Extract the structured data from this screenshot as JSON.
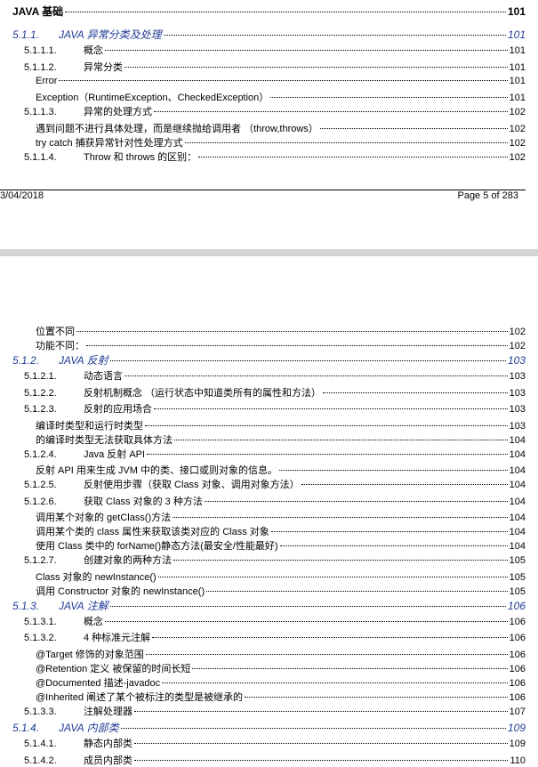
{
  "page_top": {
    "entries": [
      {
        "heading": "JAVA 基础",
        "page": "101"
      },
      {
        "number": "5.1.1.",
        "title": "JAVA 异常分类及处理",
        "page": "101"
      },
      {
        "number": "5.1.1.1.",
        "title": "概念",
        "page": "101"
      },
      {
        "number": "5.1.1.2.",
        "title": "异常分类",
        "page": "101"
      },
      {
        "title": "Error",
        "page": "101"
      },
      {
        "title": "Exception（RuntimeException、CheckedException）",
        "page": "101"
      },
      {
        "number": "5.1.1.3.",
        "title": "异常的处理方式",
        "page": "102"
      },
      {
        "title": "遇到问题不进行具体处理，而是继续抛给调用者 （throw,throws）",
        "page": "102"
      },
      {
        "title": "try catch 捕获异常针对性处理方式",
        "page": "102"
      },
      {
        "number": "5.1.1.4.",
        "title": "Throw 和 throws 的区别：",
        "page": "102"
      }
    ],
    "footer": {
      "date": "3/04/2018",
      "page": "Page 5 of 283"
    }
  },
  "page_bottom": {
    "entries": [
      {
        "title": "位置不同",
        "page": "102"
      },
      {
        "title": "功能不同：",
        "page": "102"
      },
      {
        "number": "5.1.2.",
        "title": "JAVA 反射",
        "page": "103"
      },
      {
        "number": "5.1.2.1.",
        "title": "动态语言",
        "page": "103"
      },
      {
        "number": "5.1.2.2.",
        "title": "反射机制概念 （运行状态中知道类所有的属性和方法）",
        "page": "103"
      },
      {
        "number": "5.1.2.3.",
        "title": "反射的应用场合",
        "page": "103"
      },
      {
        "title": "编译时类型和运行时类型",
        "page": "103"
      },
      {
        "title": "的编译时类型无法获取具体方法",
        "page": "104"
      },
      {
        "number": "5.1.2.4.",
        "title": "Java 反射 API",
        "page": "104"
      },
      {
        "title": "反射 API 用来生成 JVM 中的类、接口或则对象的信息。",
        "page": "104"
      },
      {
        "number": "5.1.2.5.",
        "title": "反射使用步骤（获取 Class 对象、调用对象方法）",
        "page": "104"
      },
      {
        "number": "5.1.2.6.",
        "title": "获取 Class 对象的 3 种方法",
        "page": "104"
      },
      {
        "title": "调用某个对象的 getClass()方法",
        "page": "104"
      },
      {
        "title": "调用某个类的 class 属性来获取该类对应的 Class 对象",
        "page": "104"
      },
      {
        "title": "使用 Class 类中的 forName()静态方法(最安全/性能最好)",
        "page": "104"
      },
      {
        "number": "5.1.2.7.",
        "title": "创建对象的两种方法",
        "page": "105"
      },
      {
        "title": "Class 对象的 newInstance()",
        "page": "105"
      },
      {
        "title": "调用 Constructor 对象的 newInstance()",
        "page": "105"
      },
      {
        "number": "5.1.3.",
        "title": "JAVA 注解",
        "page": "106"
      },
      {
        "number": "5.1.3.1.",
        "title": "概念",
        "page": "106"
      },
      {
        "number": "5.1.3.2.",
        "title": "4 种标准元注解",
        "page": "106"
      },
      {
        "title": "@Target 修饰的对象范围",
        "page": "106"
      },
      {
        "title": "@Retention 定义 被保留的时间长短",
        "page": "106"
      },
      {
        "title": "@Documented 描述-javadoc",
        "page": "106"
      },
      {
        "title": "@Inherited 阐述了某个被标注的类型是被继承的",
        "page": "106"
      },
      {
        "number": "5.1.3.3.",
        "title": "注解处理器",
        "page": "107"
      },
      {
        "number": "5.1.4.",
        "title": "JAVA 内部类",
        "page": "109"
      },
      {
        "number": "5.1.4.1.",
        "title": "静态内部类",
        "page": "109"
      },
      {
        "number": "5.1.4.2.",
        "title": "成员内部类",
        "page": "110"
      }
    ]
  }
}
